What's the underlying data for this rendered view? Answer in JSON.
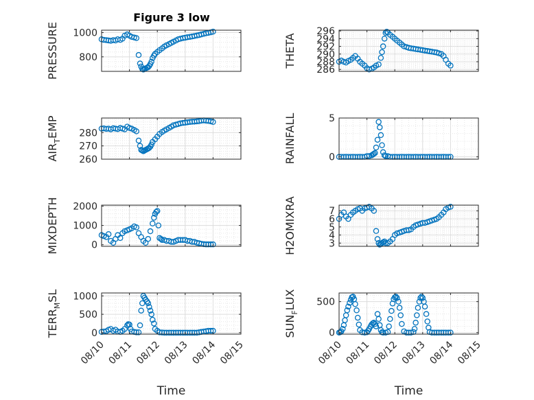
{
  "figure": {
    "title": "Figure 3 low",
    "xlabel": "Time",
    "marker_color": "#0072BD",
    "grid": true
  },
  "chart_data": [
    {
      "type": "scatter",
      "name": "pressure",
      "ylabel": "PRESSURE",
      "ylabel_sub": "",
      "ylabel_tail": "",
      "xlim": [
        0,
        5
      ],
      "ylim": [
        680,
        1020
      ],
      "yticks": [
        800,
        1000
      ],
      "xticks": [],
      "x": [
        0.0,
        0.08,
        0.17,
        0.25,
        0.33,
        0.42,
        0.5,
        0.58,
        0.67,
        0.75,
        0.83,
        0.92,
        1.0,
        1.08,
        1.17,
        1.25,
        1.33,
        1.38,
        1.42,
        1.46,
        1.5,
        1.54,
        1.58,
        1.63,
        1.67,
        1.71,
        1.75,
        1.79,
        1.83,
        1.88,
        1.92,
        2.0,
        2.08,
        2.17,
        2.25,
        2.33,
        2.42,
        2.5,
        2.58,
        2.67,
        2.75,
        2.83,
        2.92,
        3.0,
        3.08,
        3.17,
        3.25,
        3.33,
        3.42,
        3.5,
        3.58,
        3.67,
        3.75,
        3.83,
        3.92,
        4.0
      ],
      "y": [
        945,
        940,
        938,
        935,
        932,
        938,
        935,
        945,
        940,
        950,
        975,
        985,
        975,
        965,
        960,
        955,
        815,
        745,
        720,
        700,
        695,
        700,
        705,
        710,
        715,
        725,
        740,
        760,
        790,
        810,
        825,
        840,
        855,
        870,
        885,
        895,
        905,
        915,
        925,
        935,
        945,
        950,
        955,
        958,
        962,
        965,
        968,
        972,
        976,
        980,
        985,
        990,
        995,
        998,
        1002,
        1008
      ]
    },
    {
      "type": "scatter",
      "name": "theta",
      "ylabel": "THETA",
      "ylabel_sub": "",
      "ylabel_tail": "",
      "xlim": [
        0,
        5
      ],
      "ylim": [
        285.5,
        296.2
      ],
      "yticks": [
        286,
        288,
        290,
        292,
        294,
        296
      ],
      "xticks": [],
      "x": [
        0.0,
        0.08,
        0.17,
        0.25,
        0.33,
        0.42,
        0.5,
        0.58,
        0.67,
        0.75,
        0.83,
        0.92,
        1.0,
        1.08,
        1.17,
        1.25,
        1.33,
        1.42,
        1.5,
        1.54,
        1.58,
        1.63,
        1.67,
        1.71,
        1.75,
        1.83,
        1.92,
        2.0,
        2.08,
        2.17,
        2.25,
        2.33,
        2.42,
        2.5,
        2.58,
        2.67,
        2.75,
        2.83,
        2.92,
        3.0,
        3.08,
        3.17,
        3.25,
        3.33,
        3.42,
        3.5,
        3.58,
        3.67,
        3.75,
        3.83,
        3.92,
        4.0
      ],
      "y": [
        288.0,
        288.3,
        288.0,
        287.8,
        288.2,
        288.5,
        289.0,
        289.5,
        288.8,
        288.0,
        287.5,
        287.0,
        286.3,
        286.0,
        286.2,
        286.5,
        287.0,
        287.3,
        289.0,
        290.5,
        292.0,
        294.0,
        295.5,
        295.8,
        295.6,
        295.0,
        294.5,
        294.0,
        293.5,
        293.0,
        292.5,
        292.0,
        291.8,
        291.6,
        291.5,
        291.4,
        291.3,
        291.2,
        291.1,
        291.0,
        290.9,
        290.8,
        290.7,
        290.6,
        290.5,
        290.4,
        290.2,
        290.0,
        289.5,
        288.5,
        287.5,
        287.0
      ]
    },
    {
      "type": "scatter",
      "name": "air-temp",
      "ylabel": "AIR",
      "ylabel_sub": "T",
      "ylabel_tail": "EMP",
      "xlim": [
        0,
        5
      ],
      "ylim": [
        260,
        291
      ],
      "yticks": [
        260,
        270,
        280
      ],
      "xticks": [],
      "x": [
        0.0,
        0.08,
        0.17,
        0.25,
        0.33,
        0.42,
        0.5,
        0.58,
        0.67,
        0.75,
        0.83,
        0.92,
        1.0,
        1.08,
        1.17,
        1.25,
        1.33,
        1.38,
        1.42,
        1.46,
        1.5,
        1.54,
        1.58,
        1.63,
        1.67,
        1.71,
        1.75,
        1.79,
        1.83,
        1.92,
        2.0,
        2.08,
        2.17,
        2.25,
        2.33,
        2.42,
        2.5,
        2.58,
        2.67,
        2.75,
        2.83,
        2.92,
        3.0,
        3.08,
        3.17,
        3.25,
        3.33,
        3.42,
        3.5,
        3.58,
        3.67,
        3.75,
        3.83,
        3.92,
        4.0
      ],
      "y": [
        283.0,
        283.2,
        282.8,
        283.0,
        282.5,
        283.3,
        283.0,
        282.7,
        283.5,
        283.0,
        282.5,
        284.5,
        283.5,
        283.0,
        282.0,
        281.0,
        274.0,
        270.0,
        267.0,
        266.5,
        266.0,
        266.5,
        267.0,
        267.5,
        268.0,
        268.5,
        269.5,
        271.0,
        273.0,
        275.0,
        277.0,
        279.0,
        280.5,
        281.5,
        282.5,
        283.5,
        284.5,
        285.5,
        286.0,
        286.5,
        287.0,
        287.3,
        287.5,
        287.8,
        288.0,
        288.2,
        288.3,
        288.5,
        288.7,
        289.0,
        289.2,
        289.0,
        288.8,
        288.5,
        288.0
      ]
    },
    {
      "type": "scatter",
      "name": "rainfall",
      "ylabel": "RAINFALL",
      "ylabel_sub": "",
      "ylabel_tail": "",
      "xlim": [
        0,
        5
      ],
      "ylim": [
        -0.3,
        5
      ],
      "yticks": [
        0,
        5
      ],
      "xticks": [],
      "x": [
        0.0,
        0.08,
        0.17,
        0.25,
        0.33,
        0.42,
        0.5,
        0.58,
        0.67,
        0.75,
        0.83,
        0.92,
        1.0,
        1.08,
        1.17,
        1.21,
        1.25,
        1.29,
        1.33,
        1.38,
        1.42,
        1.46,
        1.5,
        1.54,
        1.58,
        1.63,
        1.67,
        1.75,
        1.83,
        1.92,
        2.0,
        2.08,
        2.17,
        2.25,
        2.33,
        2.42,
        2.5,
        2.58,
        2.67,
        2.75,
        2.83,
        2.92,
        3.0,
        3.08,
        3.17,
        3.25,
        3.33,
        3.42,
        3.5,
        3.58,
        3.67,
        3.75,
        3.83,
        3.92,
        4.0
      ],
      "y": [
        0,
        0,
        0,
        0,
        0,
        0,
        0,
        0,
        0,
        0,
        0,
        0,
        0.1,
        0.1,
        0.2,
        0.3,
        0.4,
        0.5,
        1.2,
        2.2,
        4.5,
        3.8,
        2.8,
        1.5,
        0.6,
        0.2,
        0.1,
        0.1,
        0,
        0,
        0,
        0,
        0,
        0,
        0,
        0,
        0,
        0,
        0,
        0,
        0,
        0,
        0,
        0,
        0,
        0,
        0,
        0,
        0,
        0,
        0,
        0,
        0,
        0,
        0
      ]
    },
    {
      "type": "scatter",
      "name": "mixdepth",
      "ylabel": "MIXDEPTH",
      "ylabel_sub": "",
      "ylabel_tail": "",
      "xlim": [
        0,
        5
      ],
      "ylim": [
        -80,
        2050
      ],
      "yticks": [
        0,
        1000,
        2000
      ],
      "xticks": [],
      "x": [
        0.0,
        0.08,
        0.17,
        0.25,
        0.33,
        0.42,
        0.5,
        0.58,
        0.67,
        0.75,
        0.83,
        0.92,
        1.0,
        1.08,
        1.17,
        1.25,
        1.33,
        1.42,
        1.5,
        1.58,
        1.67,
        1.75,
        1.83,
        1.88,
        1.92,
        1.96,
        2.0,
        2.04,
        2.08,
        2.13,
        2.17,
        2.25,
        2.33,
        2.42,
        2.5,
        2.58,
        2.67,
        2.75,
        2.83,
        2.92,
        3.0,
        3.08,
        3.17,
        3.25,
        3.33,
        3.42,
        3.5,
        3.58,
        3.67,
        3.75,
        3.83,
        3.92,
        4.0
      ],
      "y": [
        500,
        450,
        400,
        550,
        200,
        100,
        300,
        500,
        350,
        600,
        700,
        750,
        800,
        850,
        950,
        900,
        600,
        400,
        200,
        100,
        300,
        700,
        1100,
        1400,
        1600,
        1700,
        1750,
        1000,
        350,
        300,
        250,
        250,
        200,
        200,
        150,
        150,
        200,
        250,
        250,
        250,
        250,
        200,
        200,
        150,
        150,
        100,
        80,
        50,
        30,
        20,
        20,
        20,
        20
      ]
    },
    {
      "type": "scatter",
      "name": "h2omixra",
      "ylabel": "H2OMIXRA",
      "ylabel_sub": "",
      "ylabel_tail": "",
      "xlim": [
        0,
        5
      ],
      "ylim": [
        2.6,
        7.7
      ],
      "yticks": [
        3,
        4,
        5,
        6,
        7
      ],
      "xticks": [],
      "x": [
        0.0,
        0.08,
        0.17,
        0.25,
        0.33,
        0.42,
        0.5,
        0.58,
        0.67,
        0.75,
        0.83,
        0.92,
        1.0,
        1.08,
        1.17,
        1.25,
        1.33,
        1.38,
        1.42,
        1.46,
        1.5,
        1.54,
        1.58,
        1.63,
        1.67,
        1.75,
        1.83,
        1.92,
        2.0,
        2.08,
        2.17,
        2.25,
        2.33,
        2.42,
        2.5,
        2.58,
        2.67,
        2.75,
        2.83,
        2.92,
        3.0,
        3.08,
        3.17,
        3.25,
        3.33,
        3.42,
        3.5,
        3.58,
        3.67,
        3.75,
        3.83,
        3.92,
        4.0
      ],
      "y": [
        6.0,
        6.5,
        6.8,
        6.3,
        6.0,
        6.5,
        6.8,
        7.0,
        7.2,
        7.3,
        7.0,
        7.3,
        7.4,
        7.5,
        7.3,
        7.0,
        4.5,
        3.5,
        3.0,
        2.8,
        2.9,
        3.0,
        3.1,
        3.2,
        3.0,
        3.0,
        3.2,
        3.5,
        4.0,
        4.2,
        4.3,
        4.4,
        4.5,
        4.6,
        4.6,
        4.7,
        5.0,
        5.2,
        5.3,
        5.4,
        5.5,
        5.5,
        5.6,
        5.7,
        5.8,
        5.9,
        6.0,
        6.2,
        6.5,
        6.8,
        7.2,
        7.4,
        7.5
      ]
    },
    {
      "type": "scatter",
      "name": "terr-msl",
      "ylabel": "TERR",
      "ylabel_sub": "M",
      "ylabel_tail": "SL",
      "xlim": [
        0,
        5
      ],
      "ylim": [
        -40,
        1080
      ],
      "yticks": [
        0,
        500,
        1000
      ],
      "xticks": [
        "08/10",
        "08/11",
        "08/12",
        "08/13",
        "08/14",
        "08/15"
      ],
      "x": [
        0.0,
        0.08,
        0.17,
        0.25,
        0.33,
        0.42,
        0.5,
        0.58,
        0.67,
        0.75,
        0.83,
        0.92,
        0.96,
        1.0,
        1.04,
        1.08,
        1.17,
        1.25,
        1.33,
        1.38,
        1.42,
        1.46,
        1.5,
        1.54,
        1.58,
        1.63,
        1.67,
        1.71,
        1.75,
        1.79,
        1.83,
        1.88,
        1.92,
        2.0,
        2.08,
        2.17,
        2.25,
        2.33,
        2.42,
        2.5,
        2.58,
        2.67,
        2.75,
        2.83,
        2.92,
        3.0,
        3.08,
        3.17,
        3.25,
        3.33,
        3.42,
        3.5,
        3.58,
        3.67,
        3.75,
        3.83,
        3.92,
        4.0
      ],
      "y": [
        20,
        30,
        40,
        80,
        100,
        50,
        80,
        30,
        20,
        50,
        100,
        200,
        230,
        220,
        100,
        30,
        20,
        10,
        10,
        200,
        600,
        800,
        1000,
        950,
        900,
        850,
        800,
        700,
        600,
        500,
        350,
        250,
        100,
        50,
        10,
        5,
        0,
        0,
        0,
        0,
        0,
        0,
        0,
        0,
        0,
        0,
        0,
        0,
        0,
        0,
        0,
        10,
        20,
        30,
        40,
        50,
        50,
        50
      ]
    },
    {
      "type": "scatter",
      "name": "sun-flux",
      "ylabel": "SUN",
      "ylabel_sub": "F",
      "ylabel_tail": "LUX",
      "xlim": [
        0,
        5
      ],
      "ylim": [
        -25,
        640
      ],
      "yticks": [
        0,
        500
      ],
      "xticks": [
        "08/10",
        "08/11",
        "08/12",
        "08/13",
        "08/14",
        "08/15"
      ],
      "x": [
        0.0,
        0.04,
        0.08,
        0.13,
        0.17,
        0.21,
        0.25,
        0.29,
        0.33,
        0.38,
        0.42,
        0.46,
        0.5,
        0.54,
        0.58,
        0.63,
        0.67,
        0.71,
        0.75,
        0.83,
        0.92,
        1.0,
        1.04,
        1.08,
        1.13,
        1.17,
        1.21,
        1.25,
        1.29,
        1.33,
        1.38,
        1.42,
        1.46,
        1.5,
        1.54,
        1.58,
        1.67,
        1.75,
        1.79,
        1.83,
        1.88,
        1.92,
        1.96,
        2.0,
        2.04,
        2.08,
        2.13,
        2.17,
        2.21,
        2.25,
        2.33,
        2.42,
        2.5,
        2.58,
        2.67,
        2.71,
        2.75,
        2.79,
        2.83,
        2.88,
        2.92,
        2.96,
        3.0,
        3.04,
        3.08,
        3.13,
        3.17,
        3.21,
        3.25,
        3.33,
        3.42,
        3.5,
        3.58,
        3.67,
        3.75,
        3.83,
        3.92,
        4.0
      ],
      "y": [
        0,
        5,
        20,
        60,
        120,
        200,
        280,
        360,
        420,
        480,
        530,
        570,
        580,
        540,
        460,
        360,
        240,
        130,
        40,
        5,
        0,
        5,
        30,
        60,
        100,
        130,
        150,
        160,
        140,
        100,
        300,
        220,
        120,
        40,
        5,
        0,
        0,
        10,
        100,
        220,
        350,
        470,
        540,
        570,
        580,
        560,
        500,
        400,
        280,
        140,
        20,
        0,
        0,
        0,
        10,
        60,
        160,
        280,
        400,
        500,
        560,
        580,
        560,
        500,
        420,
        300,
        180,
        80,
        10,
        0,
        0,
        0,
        0,
        0,
        0,
        0,
        0,
        0
      ]
    }
  ]
}
